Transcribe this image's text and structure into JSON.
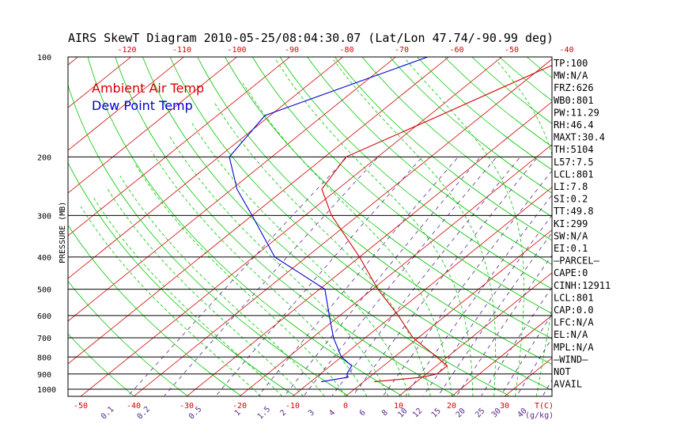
{
  "chart_data": {
    "type": "line",
    "title": "AIRS SkewT Diagram 2010-05-25/08:04:30.07 (Lat/Lon 47.74/-90.99 deg)",
    "ylabel": "PRESSURE (MB)",
    "y_scale": "log",
    "ylim": [
      1050,
      100
    ],
    "pressure_ticks": [
      "100",
      "200",
      "300",
      "400",
      "500",
      "600",
      "700",
      "800",
      "900",
      "1000"
    ],
    "top_temp_ticks": [
      "-120",
      "-110",
      "-100",
      "-90",
      "-80",
      "-70",
      "-60",
      "-50",
      "-40"
    ],
    "bottom_temp_ticks": [
      "-50",
      "-40",
      "-30",
      "-20",
      "-10",
      "0",
      "10",
      "20",
      "30"
    ],
    "bottom_temp_label": "T(C)",
    "mixing_ratio_ticks": [
      "0.1",
      "0.2",
      "0.5",
      "1",
      "1.5",
      "2",
      "3",
      "4",
      "6",
      "8",
      "10",
      "12",
      "15",
      "20",
      "25",
      "30",
      "40"
    ],
    "mixing_ratio_label": "(g/kg)",
    "series": [
      {
        "name": "Ambient Air Temp",
        "color": "#d40000",
        "points": [
          {
            "p": 100,
            "t": -37.0
          },
          {
            "p": 150,
            "t": -48.0
          },
          {
            "p": 200,
            "t": -56.0
          },
          {
            "p": 250,
            "t": -53.0
          },
          {
            "p": 300,
            "t": -45.0
          },
          {
            "p": 400,
            "t": -30.0
          },
          {
            "p": 500,
            "t": -19.0
          },
          {
            "p": 600,
            "t": -9.0
          },
          {
            "p": 700,
            "t": -1.0
          },
          {
            "p": 800,
            "t": 8.0
          },
          {
            "p": 850,
            "t": 12.0
          },
          {
            "p": 900,
            "t": 12.0
          },
          {
            "p": 920,
            "t": 10.0
          },
          {
            "p": 950,
            "t": 2.0
          }
        ]
      },
      {
        "name": "Dew Point Temp",
        "color": "#0000d4",
        "points": [
          {
            "p": 100,
            "t": -64.0
          },
          {
            "p": 150,
            "t": -81.0
          },
          {
            "p": 200,
            "t": -78.0
          },
          {
            "p": 250,
            "t": -69.0
          },
          {
            "p": 300,
            "t": -60.0
          },
          {
            "p": 400,
            "t": -46.0
          },
          {
            "p": 500,
            "t": -29.0
          },
          {
            "p": 600,
            "t": -22.0
          },
          {
            "p": 700,
            "t": -16.0
          },
          {
            "p": 800,
            "t": -10.0
          },
          {
            "p": 850,
            "t": -6.0
          },
          {
            "p": 900,
            "t": -5.0
          },
          {
            "p": 920,
            "t": -4.0
          },
          {
            "p": 950,
            "t": -8.0
          }
        ]
      }
    ],
    "legend": [
      {
        "label": "Ambient Air Temp",
        "color": "#d40000"
      },
      {
        "label": "Dew Point Temp",
        "color": "#0000d4"
      }
    ],
    "legend_placement": "top-left",
    "indices": [
      "TP:100",
      "MW:N/A",
      "FRZ:626",
      "WB0:801",
      "PW:11.29",
      "RH:46.4",
      "MAXT:30.4",
      "TH:5104",
      "L57:7.5",
      "LCL:801",
      "LI:7.8",
      "SI:0.2",
      "TT:49.8",
      "KI:299",
      "SW:N/A",
      "EI:0.1",
      "—PARCEL—",
      "CAPE:0",
      "CINH:12911",
      "LCL:801",
      "CAP:0.0",
      "LFC:N/A",
      "EL:N/A",
      "MPL:N/A",
      "—WIND—",
      "NOT",
      "AVAIL"
    ],
    "colors": {
      "isotherm": "#d40000",
      "dry_adiabat": "#00c800",
      "moist_adiabat": "#00c800",
      "mixing_ratio": "#5a2a8a",
      "frame": "#000000"
    }
  }
}
